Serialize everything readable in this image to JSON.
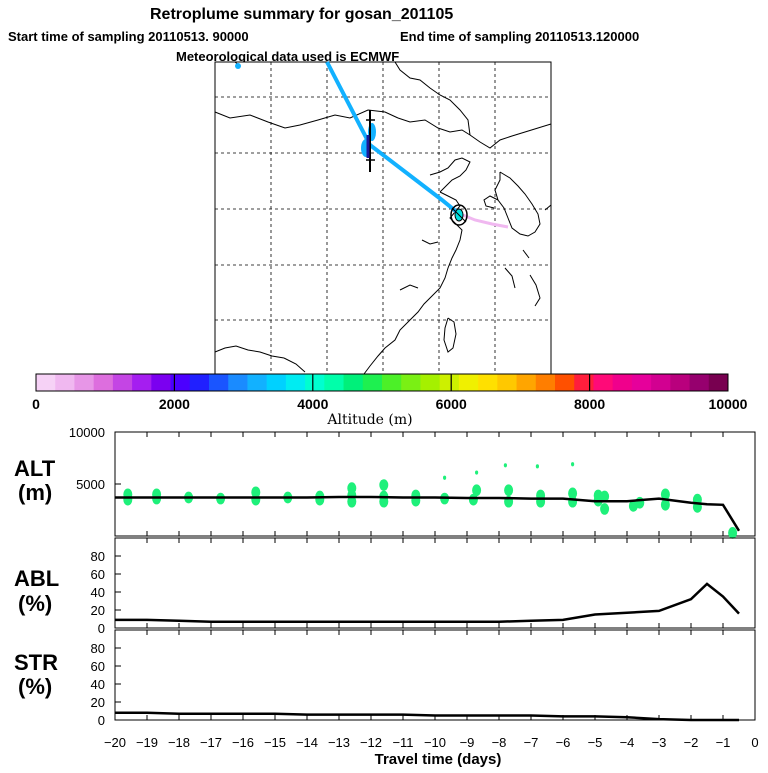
{
  "header": {
    "title": "Retroplume summary for gosan_201105",
    "start_label": "Start time of sampling 20110513. 90000",
    "end_label": "End time of sampling 20110513.120000",
    "met_label": "Meteorological data used is ECMWF"
  },
  "colorbar": {
    "title": "Altitude (m)",
    "ticks": [
      "0",
      "2000",
      "4000",
      "6000",
      "8000",
      "10000"
    ],
    "colors": [
      "#f6d2f6",
      "#f0b8f0",
      "#e796e7",
      "#dd6ede",
      "#c445e4",
      "#a51ef0",
      "#7b00f0",
      "#4b00ff",
      "#2020ff",
      "#1a55ff",
      "#1a8bff",
      "#12b1ff",
      "#00d1ff",
      "#00ecf2",
      "#00ffd0",
      "#00ffaa",
      "#00f07a",
      "#1ef050",
      "#4cf028",
      "#7af014",
      "#a5f000",
      "#cdf000",
      "#f0f000",
      "#ffe000",
      "#ffc800",
      "#ffa500",
      "#ff7e00",
      "#ff5000",
      "#ff1e3c",
      "#ff0a78",
      "#f0008c",
      "#e6009b",
      "#d20091",
      "#b9007d",
      "#96006e",
      "#780050"
    ]
  },
  "panels": {
    "alt": {
      "name": "ALT",
      "unit": "(m)",
      "yticks": [
        "10000",
        "5000"
      ]
    },
    "abl": {
      "name": "ABL",
      "unit": "(%)",
      "yticks": [
        "80",
        "60",
        "40",
        "20",
        "0"
      ]
    },
    "str": {
      "name": "STR",
      "unit": "(%)",
      "yticks": [
        "80",
        "60",
        "40",
        "20",
        "0"
      ]
    }
  },
  "xaxis": {
    "label": "Travel time (days)",
    "ticks": [
      "−20",
      "−19",
      "−18",
      "−17",
      "−16",
      "−15",
      "−14",
      "−13",
      "−12",
      "−11",
      "−10",
      "−9",
      "−8",
      "−7",
      "−6",
      "−5",
      "−4",
      "−3",
      "−2",
      "−1",
      "0"
    ]
  },
  "chart_data": [
    {
      "type": "line",
      "title": "ALT",
      "xlabel": "Travel time (days)",
      "ylabel": "m",
      "xlim": [
        -20,
        0
      ],
      "ylim": [
        0,
        10000
      ],
      "x": [
        -20,
        -19,
        -18,
        -17,
        -16,
        -15,
        -14,
        -13,
        -12,
        -11,
        -10,
        -9,
        -8,
        -7,
        -6,
        -5,
        -4,
        -3,
        -2,
        -1.5,
        -1,
        -0.5
      ],
      "values": [
        3700,
        3700,
        3700,
        3700,
        3700,
        3700,
        3700,
        3750,
        3750,
        3700,
        3700,
        3650,
        3650,
        3600,
        3600,
        3350,
        3350,
        3600,
        3200,
        3050,
        3000,
        500
      ],
      "scatter_x": [
        -19.6,
        -19.6,
        -18.7,
        -18.7,
        -17.7,
        -16.7,
        -15.6,
        -15.6,
        -14.6,
        -13.6,
        -13.6,
        -12.6,
        -12.6,
        -12.6,
        -11.6,
        -11.6,
        -11.6,
        -10.6,
        -10.6,
        -9.7,
        -9.7,
        -8.7,
        -8.7,
        -8.8,
        -7.7,
        -7.7,
        -7.8,
        -6.7,
        -6.7,
        -6.8,
        -5.7,
        -5.7,
        -5.7,
        -4.9,
        -4.9,
        -4.7,
        -4.7,
        -3.8,
        -3.6,
        -2.8,
        -2.8,
        -1.8,
        -1.8,
        -0.7
      ],
      "scatter_y": [
        4000,
        3500,
        4000,
        3600,
        3700,
        3600,
        4200,
        3500,
        3700,
        3800,
        3500,
        4600,
        3900,
        3300,
        4900,
        3800,
        3300,
        3900,
        3400,
        5600,
        3600,
        6100,
        4400,
        3500,
        4400,
        3300,
        6800,
        3900,
        3300,
        6700,
        4100,
        3300,
        6900,
        3900,
        3400,
        2600,
        3800,
        2900,
        3200,
        4000,
        3000,
        3500,
        2800,
        300
      ]
    },
    {
      "type": "line",
      "title": "ABL",
      "xlabel": "Travel time (days)",
      "ylabel": "%",
      "xlim": [
        -20,
        0
      ],
      "ylim": [
        0,
        100
      ],
      "x": [
        -20,
        -19,
        -18,
        -17,
        -16,
        -15,
        -14,
        -13,
        -12,
        -11,
        -10,
        -9,
        -8,
        -7,
        -6,
        -5,
        -4,
        -3,
        -2,
        -1.5,
        -1,
        -0.5
      ],
      "values": [
        9,
        9,
        8,
        7,
        7,
        7,
        7,
        7,
        7,
        7,
        7,
        7,
        7,
        8,
        9,
        15,
        17,
        19,
        32,
        49,
        35,
        16
      ]
    },
    {
      "type": "line",
      "title": "STR",
      "xlabel": "Travel time (days)",
      "ylabel": "%",
      "xlim": [
        -20,
        0
      ],
      "ylim": [
        0,
        100
      ],
      "x": [
        -20,
        -19,
        -18,
        -17,
        -16,
        -15,
        -14,
        -13,
        -12,
        -11,
        -10,
        -9,
        -8,
        -7,
        -6,
        -5,
        -4,
        -3,
        -2,
        -1,
        -0.5
      ],
      "values": [
        8,
        8,
        7,
        7,
        7,
        7,
        6,
        6,
        6,
        6,
        5,
        5,
        5,
        5,
        4,
        4,
        3,
        1,
        0,
        0,
        0
      ]
    }
  ]
}
